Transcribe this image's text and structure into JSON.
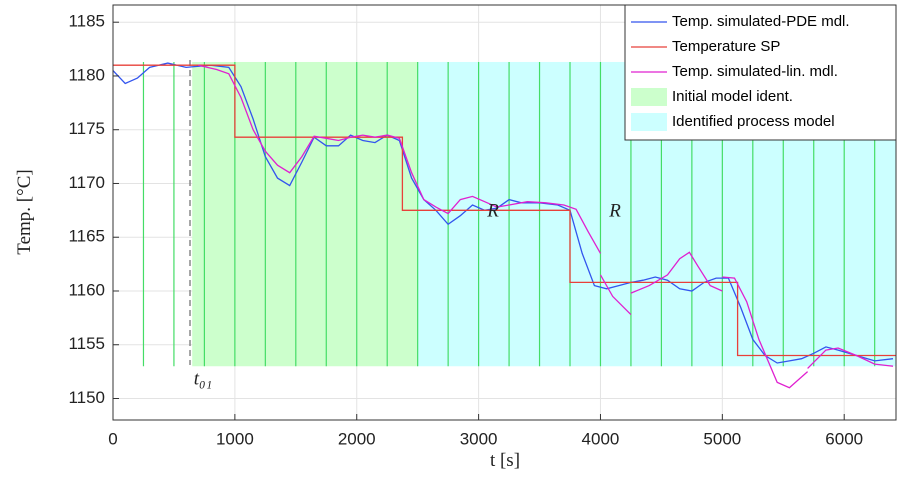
{
  "chart_data": {
    "type": "line",
    "xlabel": "t [s]",
    "ylabel": "Temp. [°C]",
    "xlim": [
      0,
      6425
    ],
    "ylim": [
      1148,
      1186.6
    ],
    "xticks": [
      0,
      1000,
      2000,
      3000,
      4000,
      5000,
      6000
    ],
    "yticks": [
      1150,
      1155,
      1160,
      1165,
      1170,
      1175,
      1180,
      1185
    ],
    "grid": true,
    "legend": "upper right",
    "regions": [
      {
        "name": "Initial model ident.",
        "color": "#ccffcc",
        "x": [
          650,
          2500
        ],
        "y": [
          1153,
          1181.3
        ]
      },
      {
        "name": "Identified process model",
        "color": "#ccffff",
        "x": [
          2500,
          6425
        ],
        "y": [
          1153,
          1181.3
        ]
      }
    ],
    "vlines": {
      "color": "#44dd66",
      "x": [
        250,
        500,
        750,
        1000,
        1250,
        1500,
        1750,
        2000,
        2250,
        2500,
        2750,
        3000,
        3250,
        3500,
        3750,
        4000,
        4250,
        4500,
        4750,
        5000,
        5250,
        5500,
        5750,
        6000,
        6250
      ]
    },
    "series": [
      {
        "name": "Temp. simulated-PDE mdl.",
        "color": "#3355ee",
        "x": [
          0,
          100,
          200,
          300,
          450,
          600,
          800,
          950,
          1050,
          1150,
          1250,
          1350,
          1450,
          1550,
          1650,
          1750,
          1850,
          1950,
          2050,
          2150,
          2250,
          2350,
          2450,
          2550,
          2650,
          2750,
          2850,
          2950,
          3050,
          3150,
          3250,
          3350,
          3500,
          3650,
          3750,
          3850,
          3950,
          4050,
          4150,
          4250,
          4350,
          4450,
          4550,
          4650,
          4750,
          4850,
          4950,
          5050,
          5150,
          5250,
          5350,
          5450,
          5550,
          5650,
          5750,
          5850,
          5950,
          6100,
          6250,
          6400
        ],
        "values": [
          1180.5,
          1179.3,
          1179.8,
          1180.8,
          1181.2,
          1180.8,
          1181,
          1180.8,
          1179,
          1176,
          1172.5,
          1170.5,
          1169.8,
          1172,
          1174.3,
          1173.5,
          1173.5,
          1174.5,
          1174,
          1173.8,
          1174.5,
          1174,
          1170.5,
          1168.5,
          1167.5,
          1166.2,
          1167,
          1168,
          1167.5,
          1167.7,
          1168.5,
          1168.2,
          1168.2,
          1168,
          1167.5,
          1163.5,
          1160.5,
          1160.2,
          1160.5,
          1160.8,
          1161,
          1161.3,
          1161,
          1160.2,
          1160,
          1160.8,
          1161.2,
          1161.2,
          1158.5,
          1155.5,
          1154,
          1153.3,
          1153.5,
          1153.7,
          1154.2,
          1154.8,
          1154.5,
          1154,
          1153.5,
          1153.7
        ]
      },
      {
        "name": "Temperature SP",
        "color": "#e8403a",
        "x": [
          0,
          1000,
          1000,
          2375,
          2375,
          3750,
          3750,
          5125,
          5125,
          6425
        ],
        "values": [
          1181,
          1181,
          1174.3,
          1174.3,
          1167.5,
          1167.5,
          1160.8,
          1160.8,
          1154,
          1154
        ]
      },
      {
        "name": "Temp. simulated-lin. mdl.",
        "color": "#e020d0",
        "x": [
          700,
          850,
          950,
          1050,
          1150,
          1250,
          1350,
          1450,
          1550,
          1650,
          1750,
          1850,
          1950,
          2050,
          2150,
          2250,
          2350,
          2450,
          2550,
          2650,
          2750,
          2850,
          2950,
          3050,
          3150,
          3250,
          3400,
          3550,
          3700,
          3800,
          3900,
          4000,
          null,
          4000,
          4100,
          4250,
          null,
          4250,
          4400,
          4550,
          4650,
          4730,
          4800,
          4900,
          5000,
          null,
          5000,
          5100,
          5200,
          5300,
          5450,
          5550,
          5700,
          null,
          5700,
          5850,
          5950,
          6100,
          6250,
          6400
        ],
        "values": [
          1181,
          1180.6,
          1180.2,
          1178,
          1175,
          1173,
          1171.7,
          1171,
          1172.5,
          1174.4,
          1174.2,
          1174,
          1174.3,
          1174.5,
          1174.3,
          1174.5,
          1174.2,
          1171,
          1168.5,
          1167.8,
          1167.2,
          1168.5,
          1168.8,
          1168.3,
          1167.8,
          1168,
          1168.3,
          1168.2,
          1168,
          1167.6,
          1165.5,
          1163.5,
          null,
          1161.5,
          1159.5,
          1157.8,
          null,
          1159.8,
          1160.5,
          1161.5,
          1163,
          1163.6,
          1162.3,
          1160.5,
          1160,
          null,
          1161.3,
          1161.2,
          1159,
          1155.5,
          1151.5,
          1151,
          1152.5,
          null,
          1152.8,
          1154.5,
          1154.7,
          1154,
          1153.2,
          1153
        ]
      }
    ],
    "annotations": [
      "R",
      "R",
      "t₀₁"
    ]
  }
}
